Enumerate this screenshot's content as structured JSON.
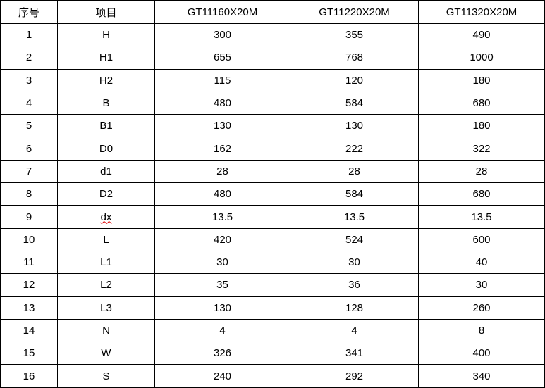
{
  "table": {
    "headers": [
      "序号",
      "项目",
      "GT11160X20M",
      "GT11220X20M",
      "GT11320X20M"
    ],
    "rows": [
      [
        "1",
        "H",
        "300",
        "355",
        "490"
      ],
      [
        "2",
        "H1",
        "655",
        "768",
        "1000"
      ],
      [
        "3",
        "H2",
        "115",
        "120",
        "180"
      ],
      [
        "4",
        "B",
        "480",
        "584",
        "680"
      ],
      [
        "5",
        "B1",
        "130",
        "130",
        "180"
      ],
      [
        "6",
        "D0",
        "162",
        "222",
        "322"
      ],
      [
        "7",
        "d1",
        "28",
        "28",
        "28"
      ],
      [
        "8",
        "D2",
        "480",
        "584",
        "680"
      ],
      [
        "9",
        "dx",
        "13.5",
        "13.5",
        "13.5"
      ],
      [
        "10",
        "L",
        "420",
        "524",
        "600"
      ],
      [
        "11",
        "L1",
        "30",
        "30",
        "40"
      ],
      [
        "12",
        "L2",
        "35",
        "36",
        "30"
      ],
      [
        "13",
        "L3",
        "130",
        "128",
        "260"
      ],
      [
        "14",
        "N",
        "4",
        "4",
        "8"
      ],
      [
        "15",
        "W",
        "326",
        "341",
        "400"
      ],
      [
        "16",
        "S",
        "240",
        "292",
        "340"
      ]
    ]
  }
}
